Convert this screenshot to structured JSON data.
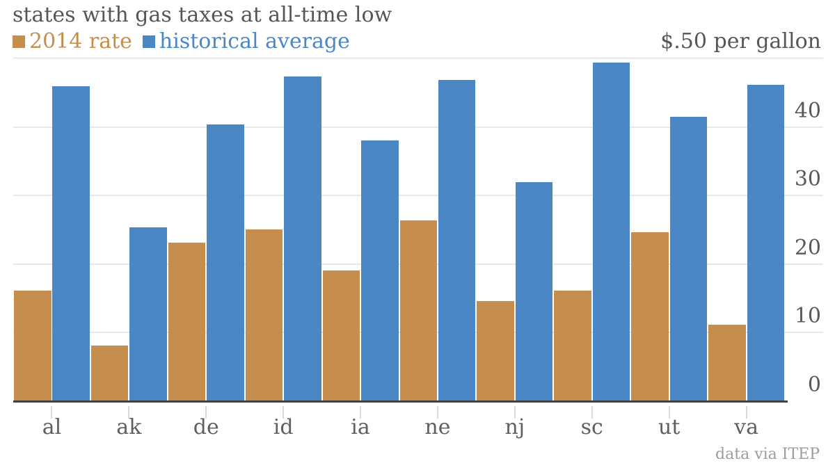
{
  "chart_data": {
    "type": "bar",
    "title": "states with gas taxes at all-time low",
    "ylabel": "$.50 per gallon",
    "source": "data via ITEP",
    "categories": [
      "al",
      "ak",
      "de",
      "id",
      "ia",
      "ne",
      "nj",
      "sc",
      "ut",
      "va"
    ],
    "series": [
      {
        "name": "2014 rate",
        "color": "#c68e4c",
        "values": [
          16,
          8,
          23,
          25,
          19,
          26.3,
          14.5,
          16,
          24.5,
          11.1
        ]
      },
      {
        "name": "historical average",
        "color": "#4c87c5",
        "values": [
          45.8,
          25.3,
          40.3,
          47.3,
          37.9,
          46.8,
          31.8,
          49.3,
          41.4,
          46
        ]
      }
    ],
    "ylim": [
      0,
      50
    ],
    "yticks": [
      0,
      10,
      20,
      30,
      40
    ],
    "grid": true,
    "legend_position": "top-left",
    "unit": "cents per gallon"
  },
  "colors": {
    "axis": "#414141",
    "gridline": "#e8e8e8",
    "text": "#565656"
  }
}
